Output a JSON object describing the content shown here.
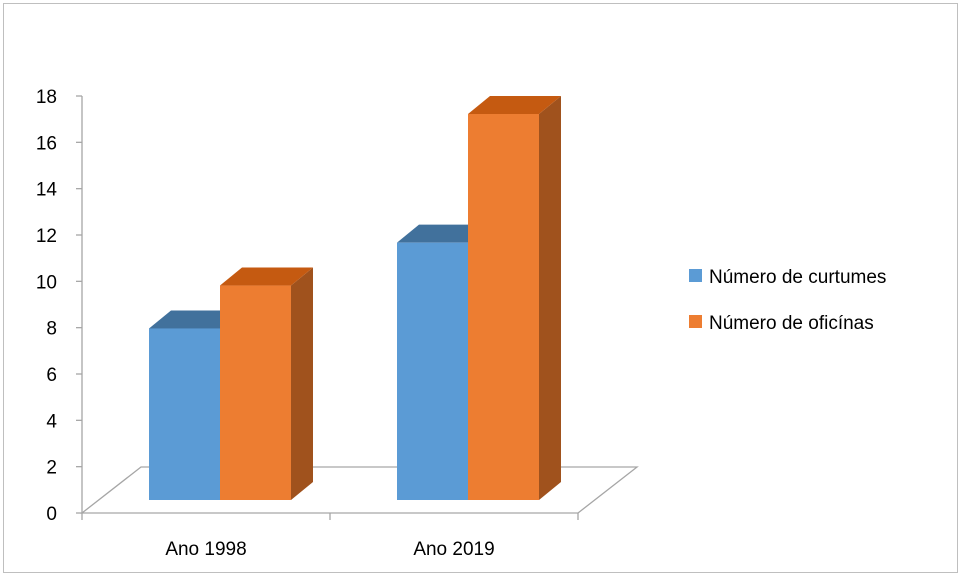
{
  "chart_data": {
    "type": "bar",
    "style": "3d-clustered-column",
    "categories": [
      "Ano 1998",
      "Ano 2019"
    ],
    "series": [
      {
        "name": "Número de curtumes",
        "values": [
          8,
          12
        ],
        "color": "#5b9bd5",
        "top_color": "#41719c",
        "side_color": "#41719c"
      },
      {
        "name": "Número de oficínas",
        "values": [
          10,
          18
        ],
        "color": "#ed7d31",
        "top_color": "#c55a11",
        "side_color": "#a0521d"
      }
    ],
    "title": "",
    "xlabel": "",
    "ylabel": "",
    "ylim": [
      0,
      18
    ],
    "yticks": [
      0,
      2,
      4,
      6,
      8,
      10,
      12,
      14,
      16,
      18
    ],
    "grid": false,
    "legend_position": "right"
  }
}
